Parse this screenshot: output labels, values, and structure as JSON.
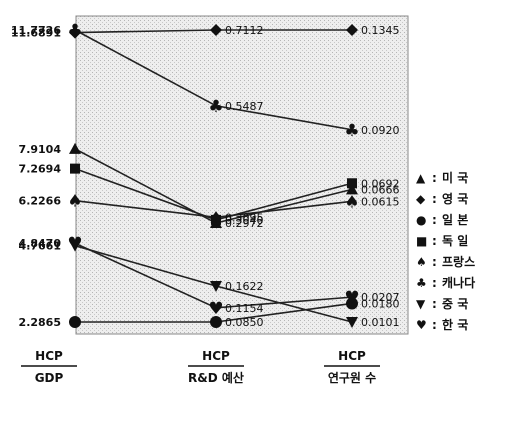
{
  "chart_data": {
    "type": "line",
    "categories": [
      {
        "numerator": "HCP",
        "denominator": "GDP"
      },
      {
        "numerator": "HCP",
        "denominator": "R&D 예산"
      },
      {
        "numerator": "HCP",
        "denominator": "연구원 수"
      }
    ],
    "grid": false,
    "legend_position": "right",
    "series": [
      {
        "legend_symbol": "▲",
        "legend_label": "미   국",
        "marker": "triangle",
        "values": [
          7.9104,
          0.2972,
          0.0666
        ],
        "labels": [
          "7.9104",
          "0.2972",
          "0.0666"
        ]
      },
      {
        "legend_symbol": "◆",
        "legend_label": "영   국",
        "marker": "diamond",
        "values": [
          11.6891,
          0.7112,
          0.1345
        ],
        "labels": [
          "11.6891",
          "0.7112",
          "0.1345"
        ]
      },
      {
        "legend_symbol": "●",
        "legend_label": "일   본",
        "marker": "circle",
        "values": [
          2.2865,
          0.085,
          0.018
        ],
        "labels": [
          "2.2865",
          "0.0850",
          "0.0180"
        ]
      },
      {
        "legend_symbol": "■",
        "legend_label": "독   일",
        "marker": "square",
        "values": [
          7.2694,
          0.304,
          0.0692
        ],
        "labels": [
          "7.2694",
          "0.3040",
          "0.0692"
        ]
      },
      {
        "legend_symbol": "♠",
        "legend_label": "프랑스",
        "marker": "spade",
        "values": [
          6.2266,
          0.3095,
          0.0615
        ],
        "labels": [
          "6.2266",
          "0.3095",
          "0.0615"
        ]
      },
      {
        "legend_symbol": "♣",
        "legend_label": "캐나다",
        "marker": "club",
        "values": [
          11.7726,
          0.5487,
          0.092
        ],
        "labels": [
          "11.7726",
          "0.5487",
          "0.0920"
        ]
      },
      {
        "legend_symbol": "▼",
        "legend_label": "중   국",
        "marker": "triangle-down",
        "values": [
          4.7661,
          0.1622,
          0.0101
        ],
        "labels": [
          "4.7661",
          "0.1622",
          "0.0101"
        ]
      },
      {
        "legend_symbol": "♥",
        "legend_label": "한   국",
        "marker": "heart",
        "values": [
          4.847,
          0.1154,
          0.0207
        ],
        "labels": [
          "4.8470",
          "0.1154",
          "0.0207"
        ]
      }
    ]
  }
}
